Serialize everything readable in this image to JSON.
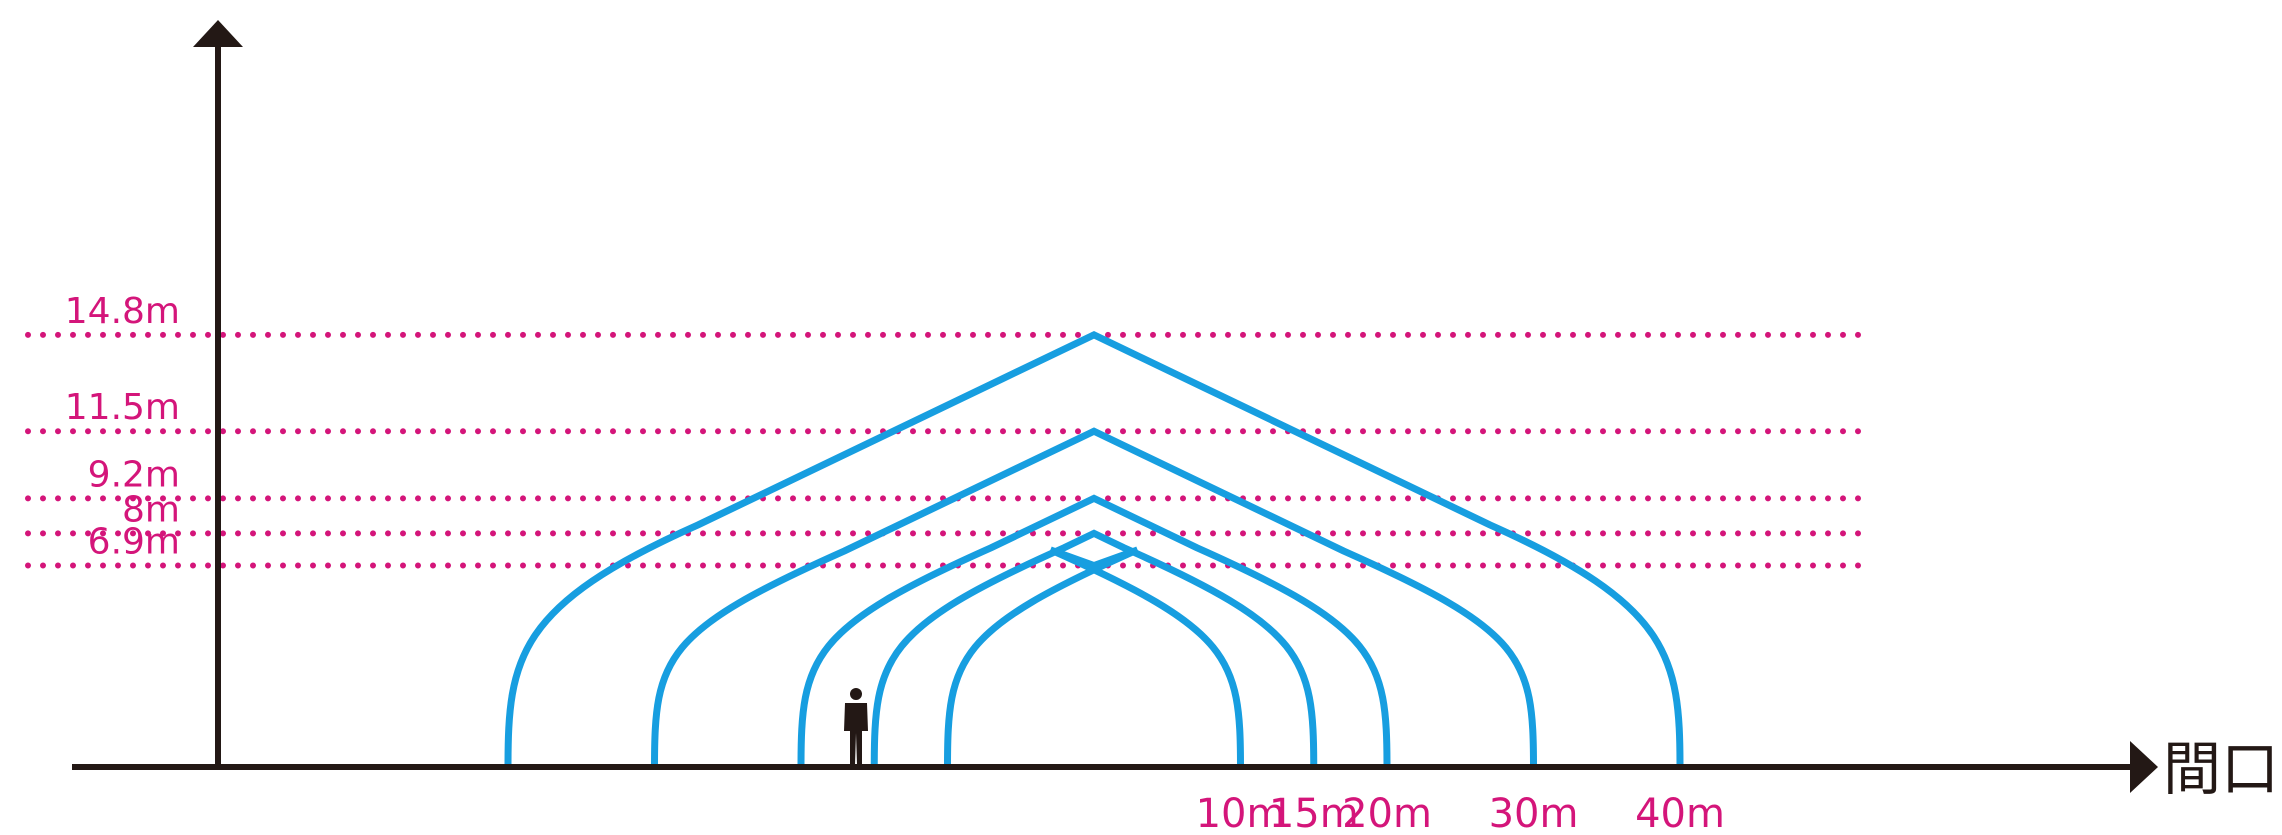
{
  "colors": {
    "axis": "#231815",
    "level_line": "#d4157a",
    "label": "#d4157a",
    "arch": "#179ee0",
    "person": "#231815"
  },
  "height_levels": [
    {
      "label": "14.8m",
      "value": 14.8
    },
    {
      "label": "11.5m",
      "value": 11.5
    },
    {
      "label": "9.2m",
      "value": 9.2
    },
    {
      "label": "8m",
      "value": 8
    },
    {
      "label": "6.9m",
      "value": 6.9
    }
  ],
  "arches": [
    {
      "span_label": "10m",
      "span": 10,
      "height": 6.9
    },
    {
      "span_label": "15m",
      "span": 15,
      "height": 8
    },
    {
      "span_label": "20m",
      "span": 20,
      "height": 9.2
    },
    {
      "span_label": "30m",
      "span": 30,
      "height": 11.5
    },
    {
      "span_label": "40m",
      "span": 40,
      "height": 14.8
    }
  ],
  "x_axis": {
    "title": "間口"
  },
  "icons": {
    "person": "person-silhouette-icon",
    "y_arrow": "arrow-up-icon",
    "x_arrow": "arrow-right-icon"
  }
}
